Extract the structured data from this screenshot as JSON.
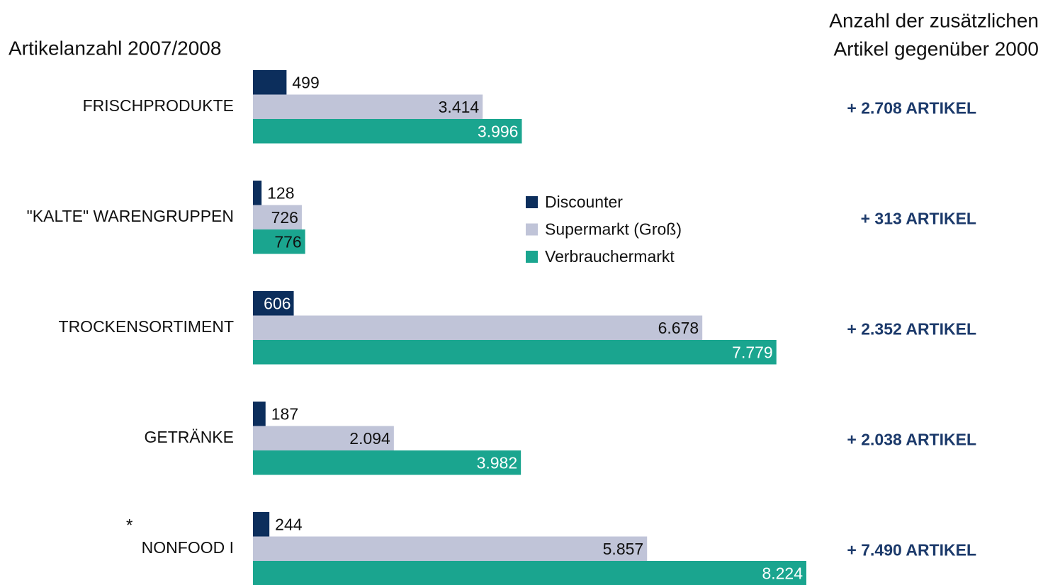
{
  "chart_data": {
    "type": "bar",
    "orientation": "horizontal",
    "title": "Artikelanzahl 2007/2008",
    "right_title": [
      "Anzahl der zusätzlichen",
      "Artikel gegenüber 2000"
    ],
    "categories": [
      "FRISCHPRODUKTE",
      "\"KALTE\" WARENGRUPPEN",
      "TROCKENSORTIMENT",
      "GETRÄNKE",
      "NONFOOD I"
    ],
    "category_marker": {
      "index": 4,
      "text": "*"
    },
    "series": [
      {
        "name": "Discounter",
        "color": "#0c2e5c",
        "values": [
          499,
          128,
          606,
          187,
          244
        ],
        "value_labels": [
          "499",
          "128",
          "606",
          "187",
          "244"
        ]
      },
      {
        "name": "Supermarkt (Groß)",
        "color": "#c0c4d8",
        "values": [
          3414,
          726,
          6678,
          2094,
          5857
        ],
        "value_labels": [
          "3.414",
          "726",
          "6.678",
          "2.094",
          "5.857"
        ]
      },
      {
        "name": "Verbrauchermarkt",
        "color": "#1aa58f",
        "values": [
          3996,
          776,
          7779,
          3982,
          8224
        ],
        "value_labels": [
          "3.996",
          "776",
          "7.779",
          "3.982",
          "8.224"
        ]
      }
    ],
    "annotations": [
      "+ 2.708 ARTIKEL",
      "+ 313 ARTIKEL",
      "+ 2.352 ARTIKEL",
      "+ 2.038 ARTIKEL",
      "+ 7.490 ARTIKEL"
    ]
  }
}
